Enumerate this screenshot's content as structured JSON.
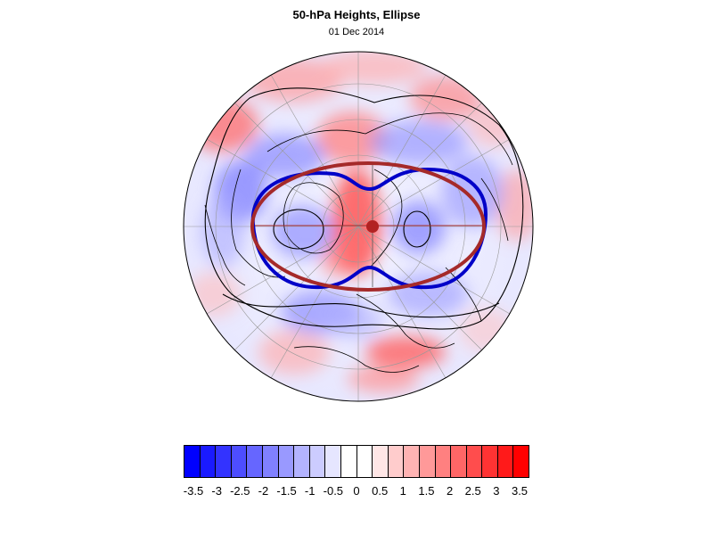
{
  "title": "50-hPa Heights, Ellipse",
  "date": "01 Dec 2014",
  "colors": {
    "ellipse": "#a52a2a",
    "curve": "#0000c8",
    "center_marker": "#b22222",
    "negative_max": "#0000ff",
    "positive_max": "#ff0000"
  },
  "colorbar": {
    "colors": [
      "#0000ff",
      "#1a1aff",
      "#3333ff",
      "#4d4dff",
      "#6666ff",
      "#8080ff",
      "#9999ff",
      "#b3b3ff",
      "#ccccff",
      "#e6e6ff",
      "#ffffff",
      "#ffffff",
      "#ffe6e6",
      "#ffcccc",
      "#ffb3b3",
      "#ff9999",
      "#ff8080",
      "#ff6666",
      "#ff4d4d",
      "#ff3333",
      "#ff1a1a",
      "#ff0000"
    ],
    "labels": [
      "-3.5",
      "-3",
      "-2.5",
      "-2",
      "-1.5",
      "-1",
      "-0.5",
      "0",
      "0.5",
      "1",
      "1.5",
      "2",
      "2.5",
      "3",
      "3.5"
    ]
  }
}
